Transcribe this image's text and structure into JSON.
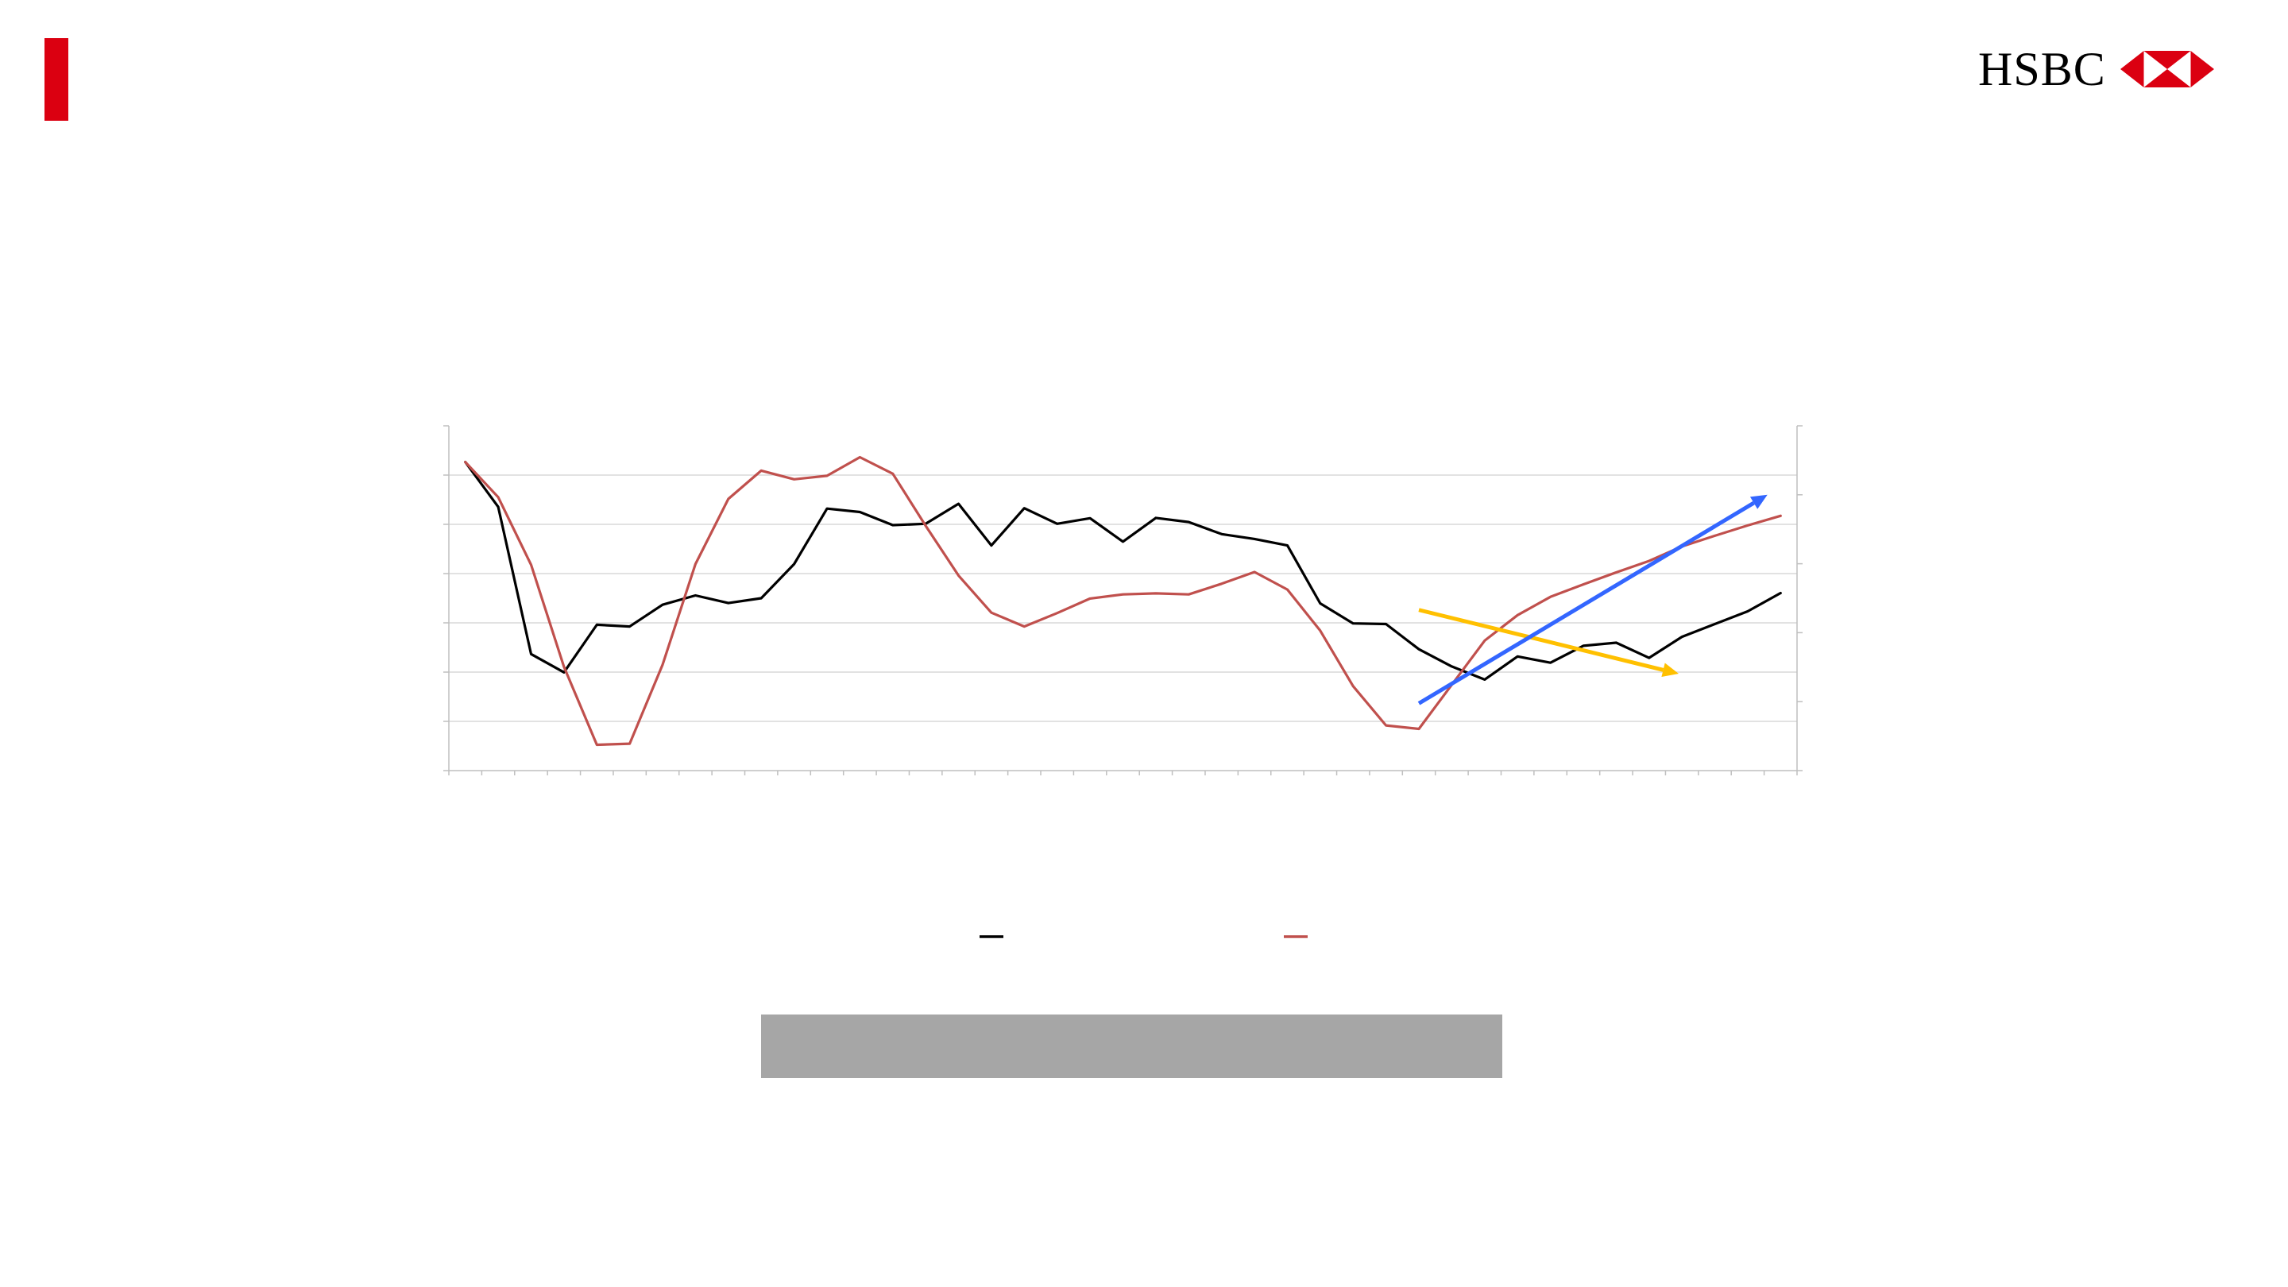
{
  "brand": {
    "name": "HSBC",
    "accent_color": "#db0011",
    "logo_icon": "hsbc-hexagon-icon"
  },
  "chart_data": {
    "type": "line",
    "title": "",
    "xlabel": "",
    "ylabel": "",
    "ylabel_right": "",
    "grid": true,
    "legend": "bottom-center",
    "x_count": 41,
    "ylim": [
      0,
      100
    ],
    "series": [
      {
        "name": "",
        "color": "#000000",
        "axis": "left",
        "values": [
          89.5,
          76.5,
          33.8,
          28.5,
          42.3,
          41.8,
          48.1,
          50.8,
          48.6,
          50.0,
          59.9,
          76.0,
          75.0,
          71.2,
          71.6,
          77.4,
          65.3,
          76.1,
          71.6,
          73.2,
          66.4,
          73.3,
          72.1,
          68.6,
          67.2,
          65.3,
          48.5,
          42.7,
          42.5,
          35.2,
          30.2,
          26.4,
          33.1,
          31.3,
          36.2,
          37.1,
          32.7,
          38.8,
          42.5,
          46.2,
          51.5
        ]
      },
      {
        "name": "",
        "color": "#c0504d",
        "axis": "right",
        "values": [
          89.5,
          79.3,
          59.7,
          30.1,
          7.5,
          7.8,
          30.7,
          59.9,
          78.8,
          87.0,
          84.5,
          85.5,
          90.9,
          86.1,
          71.0,
          56.6,
          45.8,
          41.8,
          45.7,
          49.9,
          51.1,
          51.4,
          51.1,
          54.2,
          57.6,
          52.5,
          40.6,
          24.5,
          13.1,
          12.1,
          24.9,
          37.7,
          45.1,
          50.4,
          54.0,
          57.5,
          60.8,
          65.0,
          68.1,
          71.1,
          73.9
        ]
      }
    ],
    "annotations": [
      {
        "type": "arrow",
        "color": "#ffc000",
        "from": [
          29.0,
          46.6
        ],
        "to": [
          36.9,
          28.1
        ]
      },
      {
        "type": "arrow",
        "color": "#3366ff",
        "from": [
          29.0,
          19.5
        ],
        "to": [
          39.6,
          80.0
        ]
      }
    ]
  }
}
